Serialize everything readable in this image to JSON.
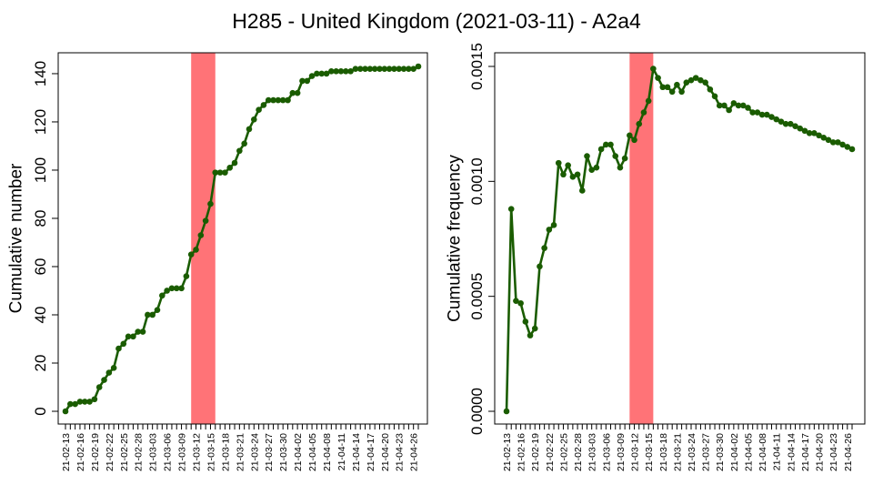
{
  "page": {
    "title": "H285 - United Kingdom (2021-03-11) - A2a4"
  },
  "colors": {
    "line": "#1a5c00",
    "highlight": "#ff7377",
    "axis": "#000000"
  },
  "chart_data": [
    {
      "type": "line",
      "ylabel": "Cumulative number",
      "xlabel": "",
      "ylim": [
        0,
        143
      ],
      "yticks": [
        0,
        20,
        40,
        60,
        80,
        100,
        120,
        140
      ],
      "tick_dates": [
        "21-02-13",
        "21-02-16",
        "21-02-19",
        "21-02-22",
        "21-02-25",
        "21-02-28",
        "21-03-03",
        "21-03-06",
        "21-03-09",
        "21-03-12",
        "21-03-15",
        "21-03-18",
        "21-03-21",
        "21-03-24",
        "21-03-27",
        "21-03-30",
        "21-04-02",
        "21-04-05",
        "21-04-08",
        "21-04-11",
        "21-04-14",
        "21-04-17",
        "21-04-20",
        "21-04-23",
        "21-04-26"
      ],
      "highlight_range": [
        "21-03-11",
        "21-03-16"
      ],
      "x": [
        "21-02-13",
        "21-02-14",
        "21-02-15",
        "21-02-16",
        "21-02-17",
        "21-02-18",
        "21-02-19",
        "21-02-20",
        "21-02-21",
        "21-02-22",
        "21-02-23",
        "21-02-24",
        "21-02-25",
        "21-02-26",
        "21-02-27",
        "21-02-28",
        "21-03-01",
        "21-03-02",
        "21-03-03",
        "21-03-04",
        "21-03-05",
        "21-03-06",
        "21-03-07",
        "21-03-08",
        "21-03-09",
        "21-03-10",
        "21-03-11",
        "21-03-12",
        "21-03-13",
        "21-03-14",
        "21-03-15",
        "21-03-16",
        "21-03-17",
        "21-03-18",
        "21-03-19",
        "21-03-20",
        "21-03-21",
        "21-03-22",
        "21-03-23",
        "21-03-24",
        "21-03-25",
        "21-03-26",
        "21-03-27",
        "21-03-28",
        "21-03-29",
        "21-03-30",
        "21-03-31",
        "21-04-01",
        "21-04-02",
        "21-04-03",
        "21-04-04",
        "21-04-05",
        "21-04-06",
        "21-04-07",
        "21-04-08",
        "21-04-09",
        "21-04-10",
        "21-04-11",
        "21-04-12",
        "21-04-13",
        "21-04-14",
        "21-04-15",
        "21-04-16",
        "21-04-17",
        "21-04-18",
        "21-04-19",
        "21-04-20",
        "21-04-21",
        "21-04-22",
        "21-04-23",
        "21-04-24",
        "21-04-25",
        "21-04-26",
        "21-04-27"
      ],
      "values": [
        0,
        3,
        3,
        4,
        4,
        4,
        5,
        10,
        13,
        16,
        18,
        26,
        28,
        31,
        31,
        33,
        33,
        40,
        40,
        42,
        48,
        50,
        51,
        51,
        51,
        56,
        65,
        67,
        73,
        79,
        86,
        99,
        99,
        99,
        101,
        103,
        108,
        111,
        117,
        121,
        125,
        127,
        129,
        129,
        129,
        129,
        129,
        132,
        132,
        137,
        137,
        139,
        140,
        140,
        140,
        141,
        141,
        141,
        141,
        141,
        142,
        142,
        142,
        142,
        142,
        142,
        142,
        142,
        142,
        142,
        142,
        142,
        142,
        143
      ]
    },
    {
      "type": "line",
      "ylabel": "Cumulative frequency",
      "xlabel": "",
      "ylim": [
        0,
        0.0015
      ],
      "yticks": [
        "0.0000",
        "0.0005",
        "0.0010",
        "0.0015"
      ],
      "ytick_values": [
        0,
        0.0005,
        0.001,
        0.0015
      ],
      "tick_dates": [
        "21-02-13",
        "21-02-16",
        "21-02-19",
        "21-02-22",
        "21-02-25",
        "21-02-28",
        "21-03-03",
        "21-03-06",
        "21-03-09",
        "21-03-12",
        "21-03-15",
        "21-03-18",
        "21-03-21",
        "21-03-24",
        "21-03-27",
        "21-03-30",
        "21-04-02",
        "21-04-05",
        "21-04-08",
        "21-04-11",
        "21-04-14",
        "21-04-17",
        "21-04-20",
        "21-04-23",
        "21-04-26"
      ],
      "highlight_range": [
        "21-03-11",
        "21-03-16"
      ],
      "x": [
        "21-02-13",
        "21-02-14",
        "21-02-15",
        "21-02-16",
        "21-02-17",
        "21-02-18",
        "21-02-19",
        "21-02-20",
        "21-02-21",
        "21-02-22",
        "21-02-23",
        "21-02-24",
        "21-02-25",
        "21-02-26",
        "21-02-27",
        "21-02-28",
        "21-03-01",
        "21-03-02",
        "21-03-03",
        "21-03-04",
        "21-03-05",
        "21-03-06",
        "21-03-07",
        "21-03-08",
        "21-03-09",
        "21-03-10",
        "21-03-11",
        "21-03-12",
        "21-03-13",
        "21-03-14",
        "21-03-15",
        "21-03-16",
        "21-03-17",
        "21-03-18",
        "21-03-19",
        "21-03-20",
        "21-03-21",
        "21-03-22",
        "21-03-23",
        "21-03-24",
        "21-03-25",
        "21-03-26",
        "21-03-27",
        "21-03-28",
        "21-03-29",
        "21-03-30",
        "21-03-31",
        "21-04-01",
        "21-04-02",
        "21-04-03",
        "21-04-04",
        "21-04-05",
        "21-04-06",
        "21-04-07",
        "21-04-08",
        "21-04-09",
        "21-04-10",
        "21-04-11",
        "21-04-12",
        "21-04-13",
        "21-04-14",
        "21-04-15",
        "21-04-16",
        "21-04-17",
        "21-04-18",
        "21-04-19",
        "21-04-20",
        "21-04-21",
        "21-04-22",
        "21-04-23",
        "21-04-24",
        "21-04-25",
        "21-04-26",
        "21-04-27"
      ],
      "values": [
        0,
        0.00088,
        0.00048,
        0.00047,
        0.00039,
        0.00033,
        0.00036,
        0.00063,
        0.00071,
        0.00079,
        0.00081,
        0.00108,
        0.00103,
        0.00107,
        0.00102,
        0.00103,
        0.00096,
        0.00111,
        0.00105,
        0.00106,
        0.00114,
        0.00116,
        0.00116,
        0.00111,
        0.00106,
        0.0011,
        0.0012,
        0.00118,
        0.00125,
        0.0013,
        0.00135,
        0.00149,
        0.00145,
        0.00141,
        0.00141,
        0.00139,
        0.00142,
        0.00139,
        0.00143,
        0.00144,
        0.00145,
        0.00144,
        0.00143,
        0.0014,
        0.00137,
        0.00133,
        0.00133,
        0.00131,
        0.00134,
        0.00133,
        0.00133,
        0.00132,
        0.0013,
        0.0013,
        0.00129,
        0.00129,
        0.00128,
        0.00127,
        0.00126,
        0.00125,
        0.00125,
        0.00124,
        0.00123,
        0.00122,
        0.00121,
        0.00121,
        0.0012,
        0.00119,
        0.00118,
        0.00117,
        0.00117,
        0.00116,
        0.00115,
        0.00114
      ]
    }
  ]
}
